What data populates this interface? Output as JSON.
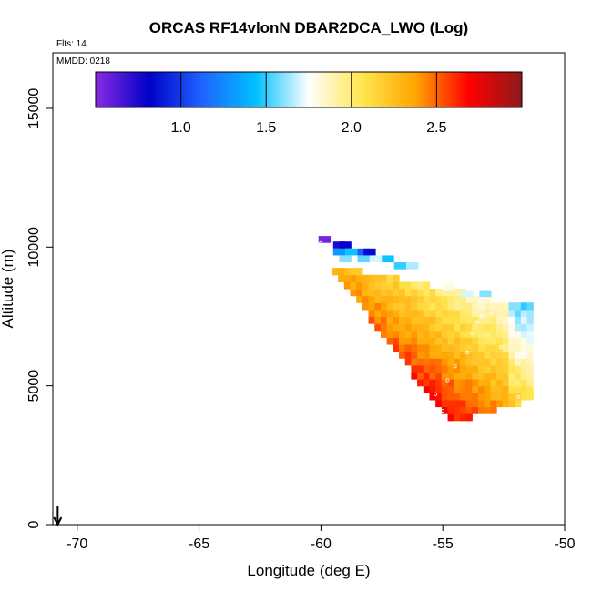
{
  "chart_data": {
    "type": "heatmap",
    "title": "ORCAS RF14vlonN DBAR2DCA_LWO (Log)",
    "flights_label": "Flts: 14",
    "date_label": "MMDD: 0218",
    "xlabel": "Longitude (deg E)",
    "ylabel": "Altitude (m)",
    "xlim": [
      -71,
      -50
    ],
    "ylim": [
      0,
      17000
    ],
    "x_ticks": [
      -70,
      -65,
      -60,
      -55,
      -50
    ],
    "x_tick_labels": [
      "-70",
      "-65",
      "-60",
      "-55",
      "-50"
    ],
    "y_ticks": [
      0,
      5000,
      10000,
      15000
    ],
    "y_tick_labels": [
      "0",
      "5000",
      "10000",
      "15000"
    ],
    "colorbar": {
      "range": [
        0.5,
        3.0
      ],
      "ticks": [
        1.0,
        1.5,
        2.0,
        2.5
      ],
      "tick_labels": [
        "1.0",
        "1.5",
        "2.0",
        "2.5"
      ],
      "colors": [
        "#8a2be2",
        "#0000c8",
        "#1e64ff",
        "#00c0ff",
        "#ffffff",
        "#ffe650",
        "#ffa500",
        "#ff0000",
        "#8b1a1a"
      ]
    },
    "flight_marker": {
      "longitude": -70.8,
      "altitude": 0,
      "direction": "down"
    },
    "cell_size": {
      "longitude": 0.25,
      "altitude": 250
    },
    "wedge": {
      "lon_left_start": -59.8,
      "lon_left_end": -55.0,
      "alt_bottom": 3750,
      "alt_top_left": 9250,
      "alt_top_right": 7750,
      "lon_right": -51.3,
      "alt_right_bottom": 4400
    },
    "top_band": [
      {
        "lon": -60.1,
        "alt": 10150,
        "value": 0.55
      },
      {
        "lon": -59.5,
        "alt": 9950,
        "value": 0.75
      },
      {
        "lon": -59.25,
        "alt": 9950,
        "value": 0.8
      },
      {
        "lon": -59.5,
        "alt": 9700,
        "value": 1.3
      },
      {
        "lon": -59.0,
        "alt": 9700,
        "value": 1.45
      },
      {
        "lon": -58.5,
        "alt": 9700,
        "value": 1.1
      },
      {
        "lon": -58.25,
        "alt": 9700,
        "value": 0.85
      },
      {
        "lon": -59.25,
        "alt": 9450,
        "value": 1.6
      },
      {
        "lon": -58.5,
        "alt": 9450,
        "value": 1.55
      },
      {
        "lon": -58.0,
        "alt": 9450,
        "value": 1.7
      },
      {
        "lon": -57.5,
        "alt": 9450,
        "value": 1.45
      },
      {
        "lon": -57.0,
        "alt": 9200,
        "value": 1.5
      },
      {
        "lon": -56.5,
        "alt": 9200,
        "value": 1.65
      },
      {
        "lon": -55.75,
        "alt": 8950,
        "value": 1.75
      },
      {
        "lon": -55.0,
        "alt": 8450,
        "value": 1.8
      },
      {
        "lon": -54.25,
        "alt": 8200,
        "value": 1.7
      },
      {
        "lon": -53.5,
        "alt": 8200,
        "value": 1.6
      },
      {
        "lon": -53.0,
        "alt": 8200,
        "value": 1.75
      }
    ],
    "sample_points": [
      {
        "lon": -60.0,
        "alt": 10150
      },
      {
        "lon": -55.0,
        "alt": 4100
      },
      {
        "lon": -55.3,
        "alt": 4700
      },
      {
        "lon": -54.8,
        "alt": 5200
      },
      {
        "lon": -54.5,
        "alt": 5700
      },
      {
        "lon": -54.0,
        "alt": 6200
      },
      {
        "lon": -53.8,
        "alt": 6900
      },
      {
        "lon": -53.6,
        "alt": 7300
      },
      {
        "lon": -53.4,
        "alt": 7500
      },
      {
        "lon": -53.0,
        "alt": 7600
      },
      {
        "lon": -52.6,
        "alt": 6400
      },
      {
        "lon": -51.9,
        "alt": 4600
      }
    ]
  }
}
